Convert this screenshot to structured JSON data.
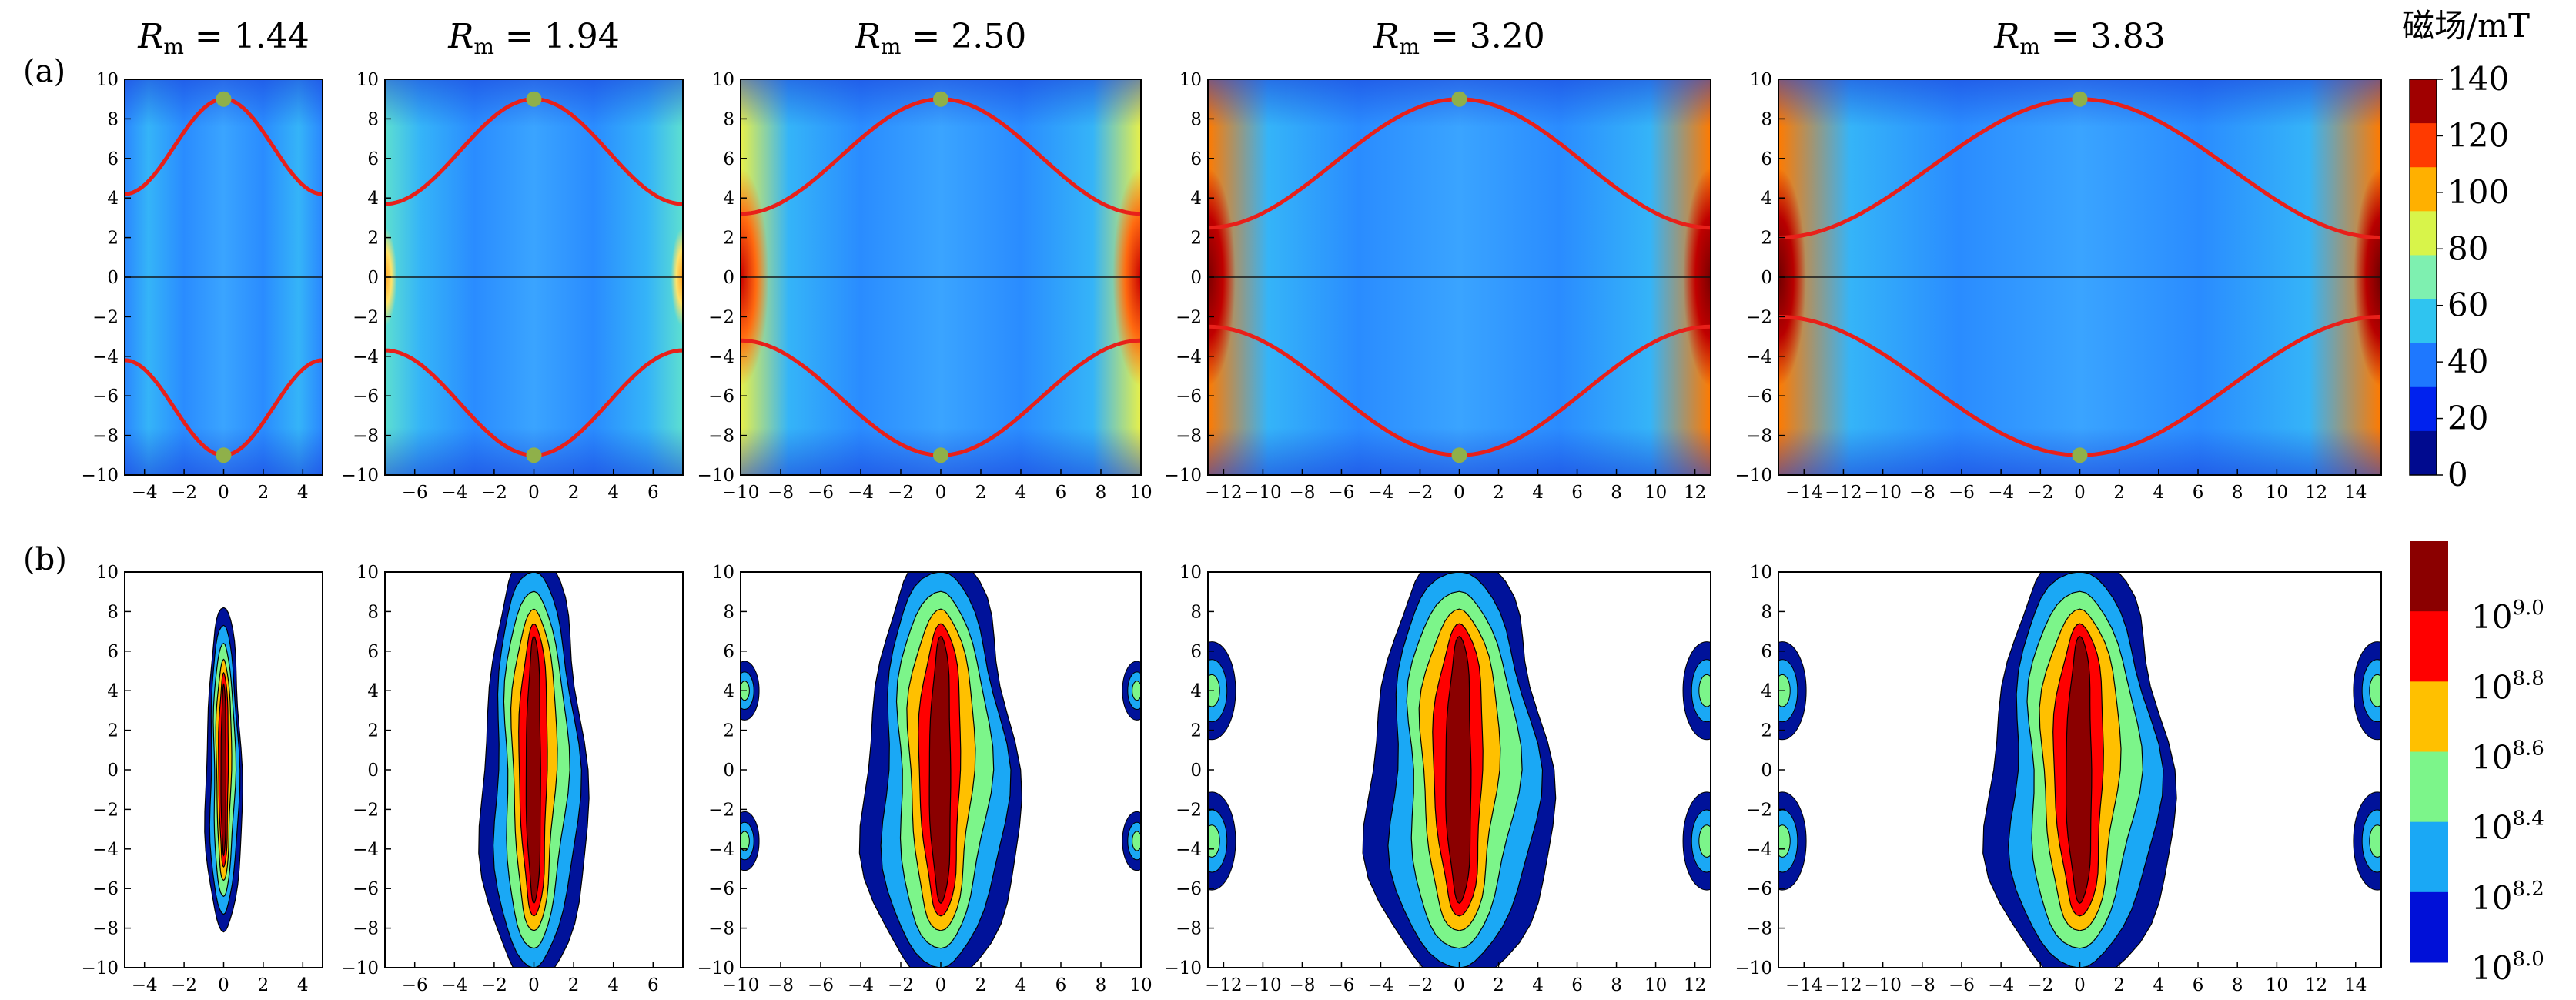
{
  "figure": {
    "row_labels": [
      "(a)",
      "(b)"
    ],
    "rm_symbol": "R",
    "rm_subscript": "m",
    "colorbar_a_title": "磁场/mT",
    "colorbar_a_ticks": [
      "0",
      "20",
      "40",
      "60",
      "80",
      "100",
      "120",
      "140"
    ],
    "colorbar_a_colors": [
      "#000a8f",
      "#0022ee",
      "#1e78ff",
      "#2fc4f0",
      "#7ef0b0",
      "#d8f44a",
      "#ffb000",
      "#ff3a00",
      "#a00000"
    ],
    "colorbar_b_ticks": [
      {
        "base": "10",
        "exp": "9.0"
      },
      {
        "base": "10",
        "exp": "8.8"
      },
      {
        "base": "10",
        "exp": "8.6"
      },
      {
        "base": "10",
        "exp": "8.4"
      },
      {
        "base": "10",
        "exp": "8.2"
      },
      {
        "base": "10",
        "exp": "8.0"
      }
    ],
    "colorbar_b_colors": [
      "#8b0000",
      "#ff0000",
      "#ffc000",
      "#7cf58a",
      "#1aa8f5",
      "#0010d8"
    ]
  },
  "chart_data": [
    {
      "type": "heatmap",
      "panel": "a",
      "title": "R_m = 1.44",
      "rm": "1.44",
      "xlim": [
        -5,
        5
      ],
      "ylim": [
        -10,
        10
      ],
      "xticks": [
        "−4",
        "−2",
        "0",
        "2",
        "4"
      ],
      "yticks": [
        "−10",
        "−8",
        "−6",
        "−4",
        "−2",
        "0",
        "2",
        "4",
        "6",
        "8",
        "10"
      ],
      "markers": [
        [
          0,
          9
        ],
        [
          0,
          -9
        ]
      ],
      "colorbar_label": "磁场/mT",
      "colorbar_range": [
        0,
        140
      ]
    },
    {
      "type": "heatmap",
      "panel": "a",
      "title": "R_m = 1.94",
      "rm": "1.94",
      "xlim": [
        -7.5,
        7.5
      ],
      "ylim": [
        -10,
        10
      ],
      "xticks": [
        "−6",
        "−4",
        "−2",
        "0",
        "2",
        "4",
        "6"
      ],
      "yticks": [
        "−10",
        "−8",
        "−6",
        "−4",
        "−2",
        "0",
        "2",
        "4",
        "6",
        "8",
        "10"
      ],
      "markers": [
        [
          0,
          9
        ],
        [
          0,
          -9
        ]
      ]
    },
    {
      "type": "heatmap",
      "panel": "a",
      "title": "R_m = 2.50",
      "rm": "2.50",
      "xlim": [
        -10,
        10
      ],
      "ylim": [
        -10,
        10
      ],
      "xticks": [
        "−10",
        "−8",
        "−6",
        "−4",
        "−2",
        "0",
        "2",
        "4",
        "6",
        "8",
        "10"
      ],
      "yticks": [
        "−10",
        "−8",
        "−6",
        "−4",
        "−2",
        "0",
        "2",
        "4",
        "6",
        "8",
        "10"
      ],
      "markers": [
        [
          0,
          9
        ],
        [
          0,
          -9
        ]
      ]
    },
    {
      "type": "heatmap",
      "panel": "a",
      "title": "R_m = 3.20",
      "rm": "3.20",
      "xlim": [
        -12.8,
        12.8
      ],
      "ylim": [
        -10,
        10
      ],
      "xticks": [
        "−12",
        "−10",
        "−8",
        "−6",
        "−4",
        "−2",
        "0",
        "2",
        "4",
        "6",
        "8",
        "10",
        "12"
      ],
      "yticks": [
        "−10",
        "−8",
        "−6",
        "−4",
        "−2",
        "0",
        "2",
        "4",
        "6",
        "8",
        "10"
      ],
      "markers": [
        [
          0,
          9
        ],
        [
          0,
          -9
        ]
      ]
    },
    {
      "type": "heatmap",
      "panel": "a",
      "title": "R_m = 3.83",
      "rm": "3.83",
      "xlim": [
        -15.3,
        15.3
      ],
      "ylim": [
        -10,
        10
      ],
      "xticks": [
        "−14",
        "−12",
        "−10",
        "−8",
        "−6",
        "−4",
        "−2",
        "0",
        "2",
        "4",
        "6",
        "8",
        "10",
        "12",
        "14"
      ],
      "yticks": [
        "−10",
        "−8",
        "−6",
        "−4",
        "−2",
        "0",
        "2",
        "4",
        "6",
        "8",
        "10"
      ],
      "markers": [
        [
          0,
          9
        ],
        [
          0,
          -9
        ]
      ]
    },
    {
      "type": "heatmap",
      "panel": "b",
      "rm": "1.44",
      "xlim": [
        -5,
        5
      ],
      "ylim": [
        -10,
        10
      ],
      "xticks": [
        "−4",
        "−2",
        "0",
        "2",
        "4"
      ],
      "yticks": [
        "−10",
        "−8",
        "−6",
        "−4",
        "−2",
        "0",
        "2",
        "4",
        "6",
        "8",
        "10"
      ],
      "blob_halfwidth": 0.9,
      "blob_halfheight": 8.2,
      "cusp_lobes": false
    },
    {
      "type": "heatmap",
      "panel": "b",
      "rm": "1.94",
      "xlim": [
        -7.5,
        7.5
      ],
      "ylim": [
        -10,
        10
      ],
      "xticks": [
        "−6",
        "−4",
        "−2",
        "0",
        "2",
        "4",
        "6"
      ],
      "yticks": [
        "−10",
        "−8",
        "−6",
        "−4",
        "−2",
        "0",
        "2",
        "4",
        "6",
        "8",
        "10"
      ],
      "blob_halfwidth": 2.6,
      "blob_halfheight": 11,
      "cusp_lobes": false
    },
    {
      "type": "heatmap",
      "panel": "b",
      "rm": "2.50",
      "xlim": [
        -10,
        10
      ],
      "ylim": [
        -10,
        10
      ],
      "xticks": [
        "−10",
        "−8",
        "−6",
        "−4",
        "−2",
        "0",
        "2",
        "4",
        "6",
        "8",
        "10"
      ],
      "yticks": [
        "−10",
        "−8",
        "−6",
        "−4",
        "−2",
        "0",
        "2",
        "4",
        "6",
        "8",
        "10"
      ],
      "blob_halfwidth": 3.8,
      "blob_halfheight": 11,
      "cusp_lobes": true
    },
    {
      "type": "heatmap",
      "panel": "b",
      "rm": "3.20",
      "xlim": [
        -12.8,
        12.8
      ],
      "ylim": [
        -10,
        10
      ],
      "xticks": [
        "−12",
        "−10",
        "−8",
        "−6",
        "−4",
        "−2",
        "0",
        "2",
        "4",
        "6",
        "8",
        "10",
        "12"
      ],
      "yticks": [
        "−10",
        "−8",
        "−6",
        "−4",
        "−2",
        "0",
        "2",
        "4",
        "6",
        "8",
        "10"
      ],
      "blob_halfwidth": 4.6,
      "blob_halfheight": 11,
      "cusp_lobes": true
    },
    {
      "type": "heatmap",
      "panel": "b",
      "rm": "3.83",
      "xlim": [
        -15.3,
        15.3
      ],
      "ylim": [
        -10,
        10
      ],
      "xticks": [
        "−14",
        "−12",
        "−10",
        "−8",
        "−6",
        "−4",
        "−2",
        "0",
        "2",
        "4",
        "6",
        "8",
        "10",
        "12",
        "14"
      ],
      "yticks": [
        "−10",
        "−8",
        "−6",
        "−4",
        "−2",
        "0",
        "2",
        "4",
        "6",
        "8",
        "10"
      ],
      "blob_halfwidth": 4.6,
      "blob_halfheight": 11,
      "cusp_lobes": true
    }
  ]
}
